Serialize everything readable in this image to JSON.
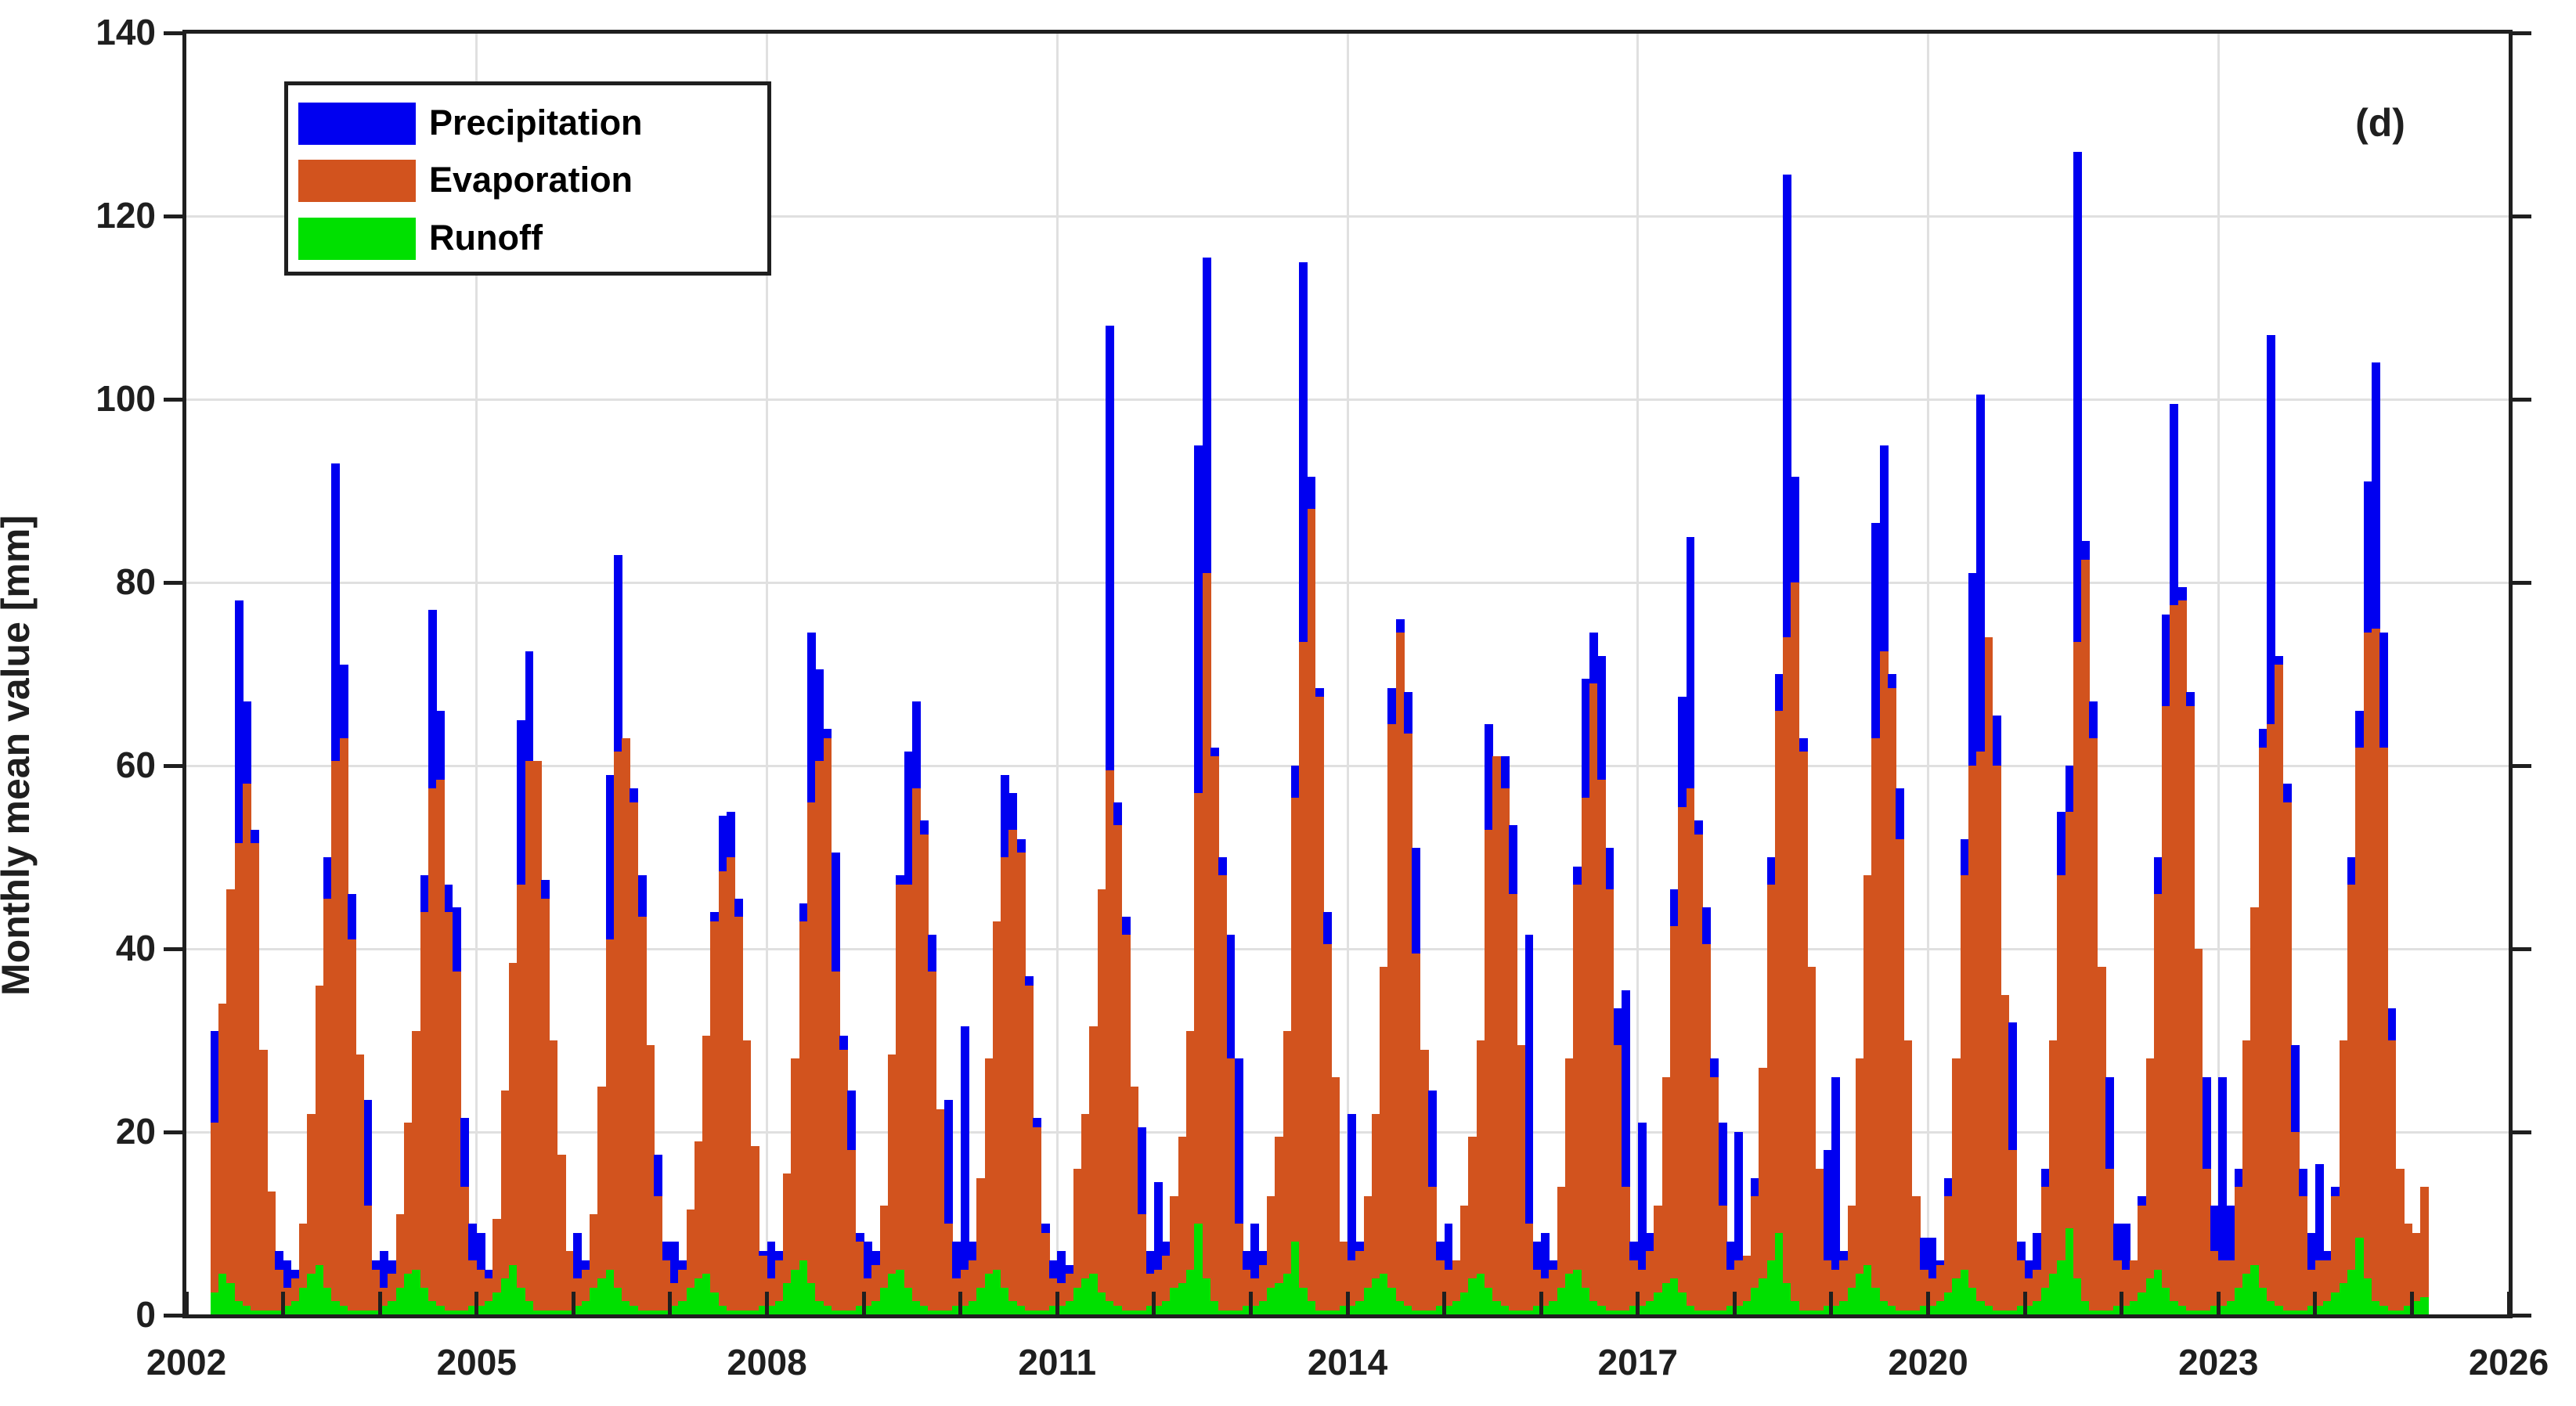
{
  "figure": {
    "corner_label": "(d)",
    "background_color": "#ffffff",
    "axis_color": "#1f1f1f",
    "grid_color": "#e0e0e0"
  },
  "axes": {
    "ylabel": "Monthly mean value [mm]",
    "ylim": [
      0,
      140
    ],
    "yticks": [
      0,
      20,
      40,
      60,
      80,
      100,
      120,
      140
    ],
    "xlim_years": [
      2002,
      2026
    ],
    "xtick_labeled_years": [
      2002,
      2005,
      2008,
      2011,
      2014,
      2017,
      2020,
      2023,
      2026
    ],
    "xtick_minor_every_year": true,
    "grid_horizontal_values": [
      20,
      40,
      60,
      80,
      100,
      120
    ],
    "grid_vertical_years": [
      2005,
      2008,
      2011,
      2014,
      2017,
      2020,
      2023
    ],
    "grid": "on"
  },
  "legend": {
    "position": "top-left",
    "entries": [
      {
        "label": "Precipitation",
        "color": "#0000f0"
      },
      {
        "label": "Evaporation",
        "color": "#d2531e"
      },
      {
        "label": "Runoff",
        "color": "#00e000"
      }
    ]
  },
  "chart_data": {
    "type": "bar",
    "title": "",
    "xlabel": "",
    "ylabel": "Monthly mean value [mm]",
    "ylim": [
      0,
      140
    ],
    "x_unit": "month",
    "start": "2002-04",
    "end": "2025-02",
    "overlay_note": "full-month-width bars drawn overlapping at same x: precipitation behind, evaporation middle, runoff front; values in mm, estimated from gridlines",
    "series": [
      {
        "name": "Precipitation",
        "color": "#0000f0",
        "layer": "back",
        "monthly_by_year": {
          "2002": [
            null,
            null,
            null,
            31,
            10,
            18,
            78,
            67,
            53,
            24,
            13.5,
            7
          ],
          "2003": [
            6,
            5,
            8,
            12,
            20,
            50,
            93,
            71,
            46,
            12,
            23.5,
            6
          ],
          "2004": [
            7,
            6,
            9,
            13,
            18,
            48,
            77,
            66,
            47,
            44.5,
            21.5,
            10
          ],
          "2005": [
            9,
            5,
            7,
            10,
            15,
            65,
            72.5,
            40,
            47.5,
            12,
            8,
            5
          ],
          "2006": [
            9,
            6,
            9,
            12,
            59,
            83,
            50,
            57.5,
            48,
            12,
            17.5,
            8
          ],
          "2007": [
            8,
            6,
            10,
            13,
            20,
            44,
            54.5,
            55,
            45.5,
            15,
            13,
            7
          ],
          "2008": [
            8,
            7,
            10,
            14,
            45,
            74.5,
            70.5,
            64,
            50.5,
            30.5,
            24.5,
            9
          ],
          "2009": [
            8,
            7,
            10,
            13,
            48,
            61.5,
            67,
            54,
            41.5,
            12,
            23.5,
            8
          ],
          "2010": [
            31.5,
            8,
            11,
            14,
            20,
            59,
            57,
            52,
            37,
            21.5,
            10,
            6
          ],
          "2011": [
            7,
            5.5,
            9,
            12,
            16,
            35,
            108,
            56,
            43.5,
            14,
            20.5,
            7
          ],
          "2012": [
            14.5,
            8,
            11,
            14,
            20,
            95,
            115.5,
            62,
            50,
            41.5,
            28,
            7
          ],
          "2013": [
            10,
            7,
            10,
            13,
            18,
            60,
            115,
            91.5,
            68.5,
            44,
            12,
            7
          ],
          "2014": [
            22,
            8,
            12,
            15,
            20,
            68.5,
            76,
            68,
            51,
            15,
            24.5,
            8
          ],
          "2015": [
            10,
            6,
            9,
            12,
            16,
            64.5,
            45,
            61,
            53.5,
            14,
            41.5,
            8
          ],
          "2016": [
            9,
            6,
            12,
            15,
            49,
            69.5,
            74.5,
            72,
            51,
            33.5,
            35.5,
            8
          ],
          "2017": [
            21,
            9,
            11,
            13,
            46.5,
            67.5,
            85,
            54,
            44.5,
            28,
            21,
            8
          ],
          "2018": [
            20,
            6,
            15,
            18,
            50,
            70,
            124.5,
            91.5,
            63,
            30,
            10,
            18
          ],
          "2019": [
            26,
            7,
            10,
            13,
            20,
            86.5,
            95,
            70,
            57.5,
            20,
            8,
            8.5
          ],
          "2020": [
            8.5,
            6,
            15,
            18,
            52,
            81,
            100.5,
            73.5,
            65.5,
            20,
            32,
            8
          ],
          "2021": [
            6,
            9,
            16,
            18,
            55,
            60,
            127,
            84.5,
            67,
            28,
            26,
            10
          ],
          "2022": [
            10,
            5,
            13,
            16,
            50,
            76.5,
            99.5,
            79.5,
            68,
            30,
            26,
            12
          ],
          "2023": [
            26,
            12,
            16,
            18,
            25,
            64,
            107,
            72,
            58,
            29.5,
            16,
            9
          ],
          "2024": [
            16.5,
            7,
            14,
            17,
            50,
            66,
            91,
            104,
            74.5,
            33.5,
            8,
            4
          ],
          "2025": [
            6,
            5,
            null,
            null,
            null,
            null,
            null,
            null,
            null,
            null,
            null,
            null
          ]
        }
      },
      {
        "name": "Evaporation",
        "color": "#d2531e",
        "layer": "middle",
        "monthly_by_year": {
          "2002": [
            null,
            null,
            null,
            21,
            34,
            46.5,
            51.5,
            58,
            51.5,
            29,
            13.5,
            5
          ],
          "2003": [
            3,
            4,
            10,
            22,
            36,
            45.5,
            60.5,
            63,
            41,
            28.5,
            12,
            5
          ],
          "2004": [
            3,
            4.5,
            11,
            21,
            31,
            44,
            57.5,
            58.5,
            44,
            37.5,
            14,
            6
          ],
          "2005": [
            5,
            4,
            10.5,
            24.5,
            38.5,
            47,
            60.5,
            60.5,
            45.5,
            30,
            17.5,
            7
          ],
          "2006": [
            4,
            5,
            11,
            25,
            41,
            61.5,
            63,
            56,
            43.5,
            29.5,
            13,
            6
          ],
          "2007": [
            3.5,
            5,
            11.5,
            19,
            30.5,
            43,
            48.5,
            50,
            43.5,
            30,
            18.5,
            6.5
          ],
          "2008": [
            4,
            6,
            15.5,
            28,
            43,
            56,
            60.5,
            63,
            37.5,
            29,
            18,
            8
          ],
          "2009": [
            4,
            5.5,
            12,
            28.5,
            47,
            47,
            57.5,
            52.5,
            37.5,
            22.5,
            10,
            4
          ],
          "2010": [
            5,
            6,
            15,
            28,
            43,
            50,
            53,
            50.5,
            36,
            20.5,
            9,
            4
          ],
          "2011": [
            3.5,
            4.5,
            16,
            22,
            31.5,
            46.5,
            59.5,
            53.5,
            41.5,
            25,
            11,
            4.5
          ],
          "2012": [
            5,
            6.5,
            13,
            19.5,
            31,
            57,
            81,
            61,
            48,
            28,
            10,
            5
          ],
          "2013": [
            4,
            5.5,
            13,
            19.5,
            31,
            56.5,
            73.5,
            88,
            67.5,
            40.5,
            26,
            8
          ],
          "2014": [
            6,
            7,
            13,
            22,
            38,
            64.5,
            74.5,
            63.5,
            39.5,
            29,
            14,
            6
          ],
          "2015": [
            5,
            6,
            12,
            19.5,
            30,
            53,
            61,
            57.5,
            46,
            29.5,
            10,
            5
          ],
          "2016": [
            4,
            5,
            14,
            28,
            47,
            56.5,
            69,
            58.5,
            46.5,
            29.5,
            14,
            6
          ],
          "2017": [
            5,
            7,
            12,
            26,
            42.5,
            55.5,
            57.5,
            52.5,
            40.5,
            26,
            12,
            5
          ],
          "2018": [
            6,
            6.5,
            13,
            27,
            47,
            66,
            74,
            80,
            61.5,
            38,
            16,
            6
          ],
          "2019": [
            5,
            6,
            12,
            28,
            48,
            63,
            72.5,
            68.5,
            52,
            30,
            13,
            5
          ],
          "2020": [
            4,
            5.5,
            13,
            28,
            48,
            60,
            61.5,
            74,
            60,
            35,
            18,
            6
          ],
          "2021": [
            4,
            5,
            14,
            30,
            48,
            55,
            73.5,
            82.5,
            63,
            38,
            16,
            6
          ],
          "2022": [
            5,
            6,
            12,
            28,
            46,
            66.5,
            77.5,
            78,
            66.5,
            40,
            16,
            7
          ],
          "2023": [
            6,
            6,
            14,
            30,
            44.5,
            62,
            64.5,
            71,
            56,
            20,
            13,
            5
          ],
          "2024": [
            6,
            6,
            13,
            30,
            47,
            62,
            74.5,
            75,
            62,
            30,
            16,
            10
          ],
          "2025": [
            9,
            14,
            null,
            null,
            null,
            null,
            null,
            null,
            null,
            null,
            null,
            null
          ]
        }
      },
      {
        "name": "Runoff",
        "color": "#00e000",
        "layer": "front",
        "monthly_by_year": {
          "2002": [
            null,
            null,
            null,
            2.5,
            4.5,
            3.5,
            1.5,
            1,
            0.5,
            0.5,
            0.5,
            0.5
          ],
          "2003": [
            1,
            1.5,
            3,
            4.5,
            5.5,
            3,
            1.5,
            1,
            0.5,
            0.5,
            0.5,
            0.5
          ],
          "2004": [
            1,
            1.5,
            3,
            4.5,
            5,
            3,
            1.5,
            1,
            0.5,
            0.5,
            0.5,
            1
          ],
          "2005": [
            1,
            1.5,
            2.5,
            4,
            5.5,
            3,
            1.5,
            0.5,
            0.5,
            0.5,
            0.5,
            0.5
          ],
          "2006": [
            1,
            1.5,
            3,
            4,
            5,
            3,
            1.5,
            1,
            0.5,
            0.5,
            0.5,
            0.5
          ],
          "2007": [
            1,
            1.5,
            3,
            4,
            4.5,
            2.5,
            1,
            0.5,
            0.5,
            0.5,
            0.5,
            1
          ],
          "2008": [
            1,
            1.5,
            3.5,
            5,
            6,
            3.5,
            1.5,
            1,
            0.5,
            0.5,
            0.5,
            1
          ],
          "2009": [
            1,
            1.5,
            3,
            4.5,
            5,
            3,
            1.5,
            1,
            0.5,
            0.5,
            0.5,
            1
          ],
          "2010": [
            1,
            1.5,
            3,
            4.5,
            5,
            3,
            1.5,
            1,
            0.5,
            0.5,
            0.5,
            1
          ],
          "2011": [
            1,
            1.5,
            3,
            4,
            4.5,
            2.5,
            1.5,
            1,
            0.5,
            0.5,
            0.5,
            1
          ],
          "2012": [
            1,
            1.5,
            3,
            3.5,
            5,
            10,
            4,
            1.5,
            0.5,
            0.5,
            0.5,
            1
          ],
          "2013": [
            1,
            1.5,
            3,
            3.5,
            4.5,
            8,
            3,
            1.5,
            0.5,
            0.5,
            0.5,
            1
          ],
          "2014": [
            1,
            1.5,
            3,
            4,
            4.5,
            3,
            1.5,
            1,
            0.5,
            0.5,
            0.5,
            1
          ],
          "2015": [
            1,
            1.5,
            2.5,
            4,
            4.5,
            3,
            1.5,
            1,
            0.5,
            0.5,
            0.5,
            1
          ],
          "2016": [
            1,
            1.5,
            3,
            4.5,
            5,
            3,
            1.5,
            1,
            0.5,
            0.5,
            0.5,
            1
          ],
          "2017": [
            1,
            1.5,
            2.5,
            3.5,
            4,
            2.5,
            1,
            0.5,
            0.5,
            0.5,
            0.5,
            1
          ],
          "2018": [
            1,
            1.5,
            3,
            4,
            6,
            9,
            3.5,
            1.5,
            0.5,
            0.5,
            0.5,
            1
          ],
          "2019": [
            1,
            1.5,
            3,
            4.5,
            5.5,
            3,
            1.5,
            1,
            0.5,
            0.5,
            0.5,
            1
          ],
          "2020": [
            1,
            1.5,
            2.5,
            4,
            5,
            3,
            1.5,
            1,
            0.5,
            0.5,
            0.5,
            1
          ],
          "2021": [
            1,
            1.5,
            3,
            4.5,
            6,
            9.5,
            4,
            1.5,
            0.5,
            0.5,
            0.5,
            1
          ],
          "2022": [
            1,
            1.5,
            2.5,
            4,
            5,
            3,
            1.5,
            1,
            0.5,
            0.5,
            0.5,
            1
          ],
          "2023": [
            1,
            1.5,
            3,
            4.5,
            5.5,
            3,
            1.5,
            1,
            0.5,
            0.5,
            0.5,
            1
          ],
          "2024": [
            1,
            1.5,
            2.5,
            3.5,
            5,
            8.5,
            4,
            1.5,
            1,
            0.5,
            0.5,
            1
          ],
          "2025": [
            1.5,
            2,
            null,
            null,
            null,
            null,
            null,
            null,
            null,
            null,
            null,
            null
          ]
        }
      }
    ]
  }
}
